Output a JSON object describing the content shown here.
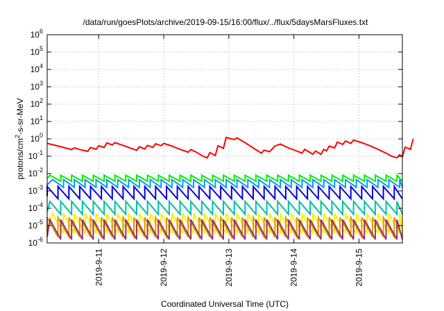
{
  "chart_data": {
    "type": "line",
    "title": "/data/run/goesPlots/archive/2019-09-15/16:00/flux/../flux/5daysMarsFluxes.txt",
    "xlabel": "Coordinated Universal Time (UTC)",
    "ylabel": {
      "base": "protons/cm",
      "sup": "2",
      "rest": "-s-sr-MeV"
    },
    "y_scale": "log",
    "ylim": [
      1e-06,
      1000000.0
    ],
    "y_ticks": [
      {
        "exp": "-6",
        "value": 1e-06
      },
      {
        "exp": "-5",
        "value": 1e-05
      },
      {
        "exp": "-4",
        "value": 0.0001
      },
      {
        "exp": "-3",
        "value": 0.001
      },
      {
        "exp": "-2",
        "value": 0.01
      },
      {
        "exp": "-1",
        "value": 0.1
      },
      {
        "exp": "0",
        "value": 1
      },
      {
        "exp": "1",
        "value": 10
      },
      {
        "exp": "2",
        "value": 100
      },
      {
        "exp": "3",
        "value": 1000
      },
      {
        "exp": "4",
        "value": 10000
      },
      {
        "exp": "5",
        "value": 100000
      },
      {
        "exp": "6",
        "value": 1000000
      }
    ],
    "y_tick_base": "10",
    "xlim": [
      "2019-09-10T05:00",
      "2019-09-15T16:00"
    ],
    "x_ticks": [
      {
        "label": "2019-9-11",
        "value": "2019-09-11T00:00"
      },
      {
        "label": "2019-9-12",
        "value": "2019-09-12T00:00"
      },
      {
        "label": "2019-9-13",
        "value": "2019-09-13T00:00"
      },
      {
        "label": "2019-9-14",
        "value": "2019-09-14T00:00"
      },
      {
        "label": "2019-9-15",
        "value": "2019-09-15T00:00"
      }
    ],
    "grid": true,
    "legend": false,
    "series": [
      {
        "color": "#ff0000",
        "points": [
          [
            "2019-09-10T05:00",
            0.55
          ],
          [
            "2019-09-10T08:00",
            0.42
          ],
          [
            "2019-09-10T11:00",
            0.32
          ],
          [
            "2019-09-10T14:00",
            0.24
          ],
          [
            "2019-09-10T15:00",
            0.3
          ],
          [
            "2019-09-10T18:00",
            0.22
          ],
          [
            "2019-09-10T20:00",
            0.19
          ],
          [
            "2019-09-10T21:00",
            0.32
          ],
          [
            "2019-09-10T23:00",
            0.25
          ],
          [
            "2019-09-11T00:00",
            0.4
          ],
          [
            "2019-09-11T02:00",
            0.32
          ],
          [
            "2019-09-11T03:00",
            0.58
          ],
          [
            "2019-09-11T05:00",
            0.45
          ],
          [
            "2019-09-11T06:00",
            0.6
          ],
          [
            "2019-09-11T09:00",
            0.42
          ],
          [
            "2019-09-11T12:00",
            0.28
          ],
          [
            "2019-09-11T14:00",
            0.22
          ],
          [
            "2019-09-11T15:00",
            0.35
          ],
          [
            "2019-09-11T17:00",
            0.26
          ],
          [
            "2019-09-11T18:00",
            0.42
          ],
          [
            "2019-09-11T20:00",
            0.32
          ],
          [
            "2019-09-11T21:00",
            0.52
          ],
          [
            "2019-09-11T23:00",
            0.4
          ],
          [
            "2019-09-12T00:00",
            0.55
          ],
          [
            "2019-09-12T03:00",
            0.38
          ],
          [
            "2019-09-12T06:00",
            0.25
          ],
          [
            "2019-09-12T09:00",
            0.17
          ],
          [
            "2019-09-12T10:00",
            0.24
          ],
          [
            "2019-09-12T12:00",
            0.17
          ],
          [
            "2019-09-12T14:00",
            0.11
          ],
          [
            "2019-09-12T16:00",
            0.08
          ],
          [
            "2019-09-12T17:00",
            0.16
          ],
          [
            "2019-09-12T19:00",
            0.11
          ],
          [
            "2019-09-12T20:00",
            0.4
          ],
          [
            "2019-09-12T22:00",
            0.28
          ],
          [
            "2019-09-12T23:00",
            1.2
          ],
          [
            "2019-09-13T02:00",
            0.9
          ],
          [
            "2019-09-13T03:00",
            1.15
          ],
          [
            "2019-09-13T06:00",
            0.6
          ],
          [
            "2019-09-13T09:00",
            0.3
          ],
          [
            "2019-09-13T12:00",
            0.15
          ],
          [
            "2019-09-13T13:00",
            0.22
          ],
          [
            "2019-09-13T15:00",
            0.18
          ],
          [
            "2019-09-13T17:00",
            0.38
          ],
          [
            "2019-09-13T19:00",
            0.5
          ],
          [
            "2019-09-13T22:00",
            0.3
          ],
          [
            "2019-09-14T01:00",
            0.2
          ],
          [
            "2019-09-14T03:00",
            0.15
          ],
          [
            "2019-09-14T04:00",
            0.25
          ],
          [
            "2019-09-14T06:00",
            0.16
          ],
          [
            "2019-09-14T07:00",
            0.13
          ],
          [
            "2019-09-14T08:00",
            0.2
          ],
          [
            "2019-09-14T10:00",
            0.13
          ],
          [
            "2019-09-14T11:00",
            0.25
          ],
          [
            "2019-09-14T12:00",
            0.2
          ],
          [
            "2019-09-14T13:00",
            0.38
          ],
          [
            "2019-09-14T15:00",
            0.3
          ],
          [
            "2019-09-14T16:00",
            0.65
          ],
          [
            "2019-09-14T18:00",
            0.48
          ],
          [
            "2019-09-14T19:00",
            0.75
          ],
          [
            "2019-09-14T21:00",
            0.55
          ],
          [
            "2019-09-14T22:00",
            0.85
          ],
          [
            "2019-09-15T01:00",
            0.6
          ],
          [
            "2019-09-15T04:00",
            0.4
          ],
          [
            "2019-09-15T07:00",
            0.25
          ],
          [
            "2019-09-15T10:00",
            0.15
          ],
          [
            "2019-09-15T12:00",
            0.1
          ],
          [
            "2019-09-15T14:00",
            0.08
          ],
          [
            "2019-09-15T15:00",
            0.12
          ],
          [
            "2019-09-15T16:00",
            0.09
          ],
          [
            "2019-09-15T17:00",
            0.33
          ],
          [
            "2019-09-15T19:00",
            0.25
          ],
          [
            "2019-09-15T20:00",
            1.0
          ]
        ]
      },
      {
        "color": "#00ee00",
        "sawtooth": {
          "peak": 0.008,
          "trough": 0.0036,
          "cycle_hours": 4
        }
      },
      {
        "color": "#0099ff",
        "sawtooth": {
          "peak": 0.0045,
          "trough": 0.0016,
          "cycle_hours": 4
        }
      },
      {
        "color": "#0000dd",
        "sawtooth": {
          "peak": 0.0018,
          "trough": 0.00035,
          "cycle_hours": 4
        }
      },
      {
        "color": "#00c0a0",
        "sawtooth": {
          "peak": 0.00025,
          "trough": 4.5e-05,
          "cycle_hours": 4
        }
      },
      {
        "color": "#ffee00",
        "sawtooth": {
          "peak": 5e-05,
          "trough": 3.5e-06,
          "cycle_hours": 4
        }
      },
      {
        "color": "#dd9900",
        "sawtooth": {
          "peak": 3e-05,
          "trough": 2.2e-06,
          "cycle_hours": 4
        }
      },
      {
        "color": "#993366",
        "sawtooth": {
          "peak": 2.2e-05,
          "trough": 1.6e-06,
          "cycle_hours": 4
        }
      }
    ]
  }
}
